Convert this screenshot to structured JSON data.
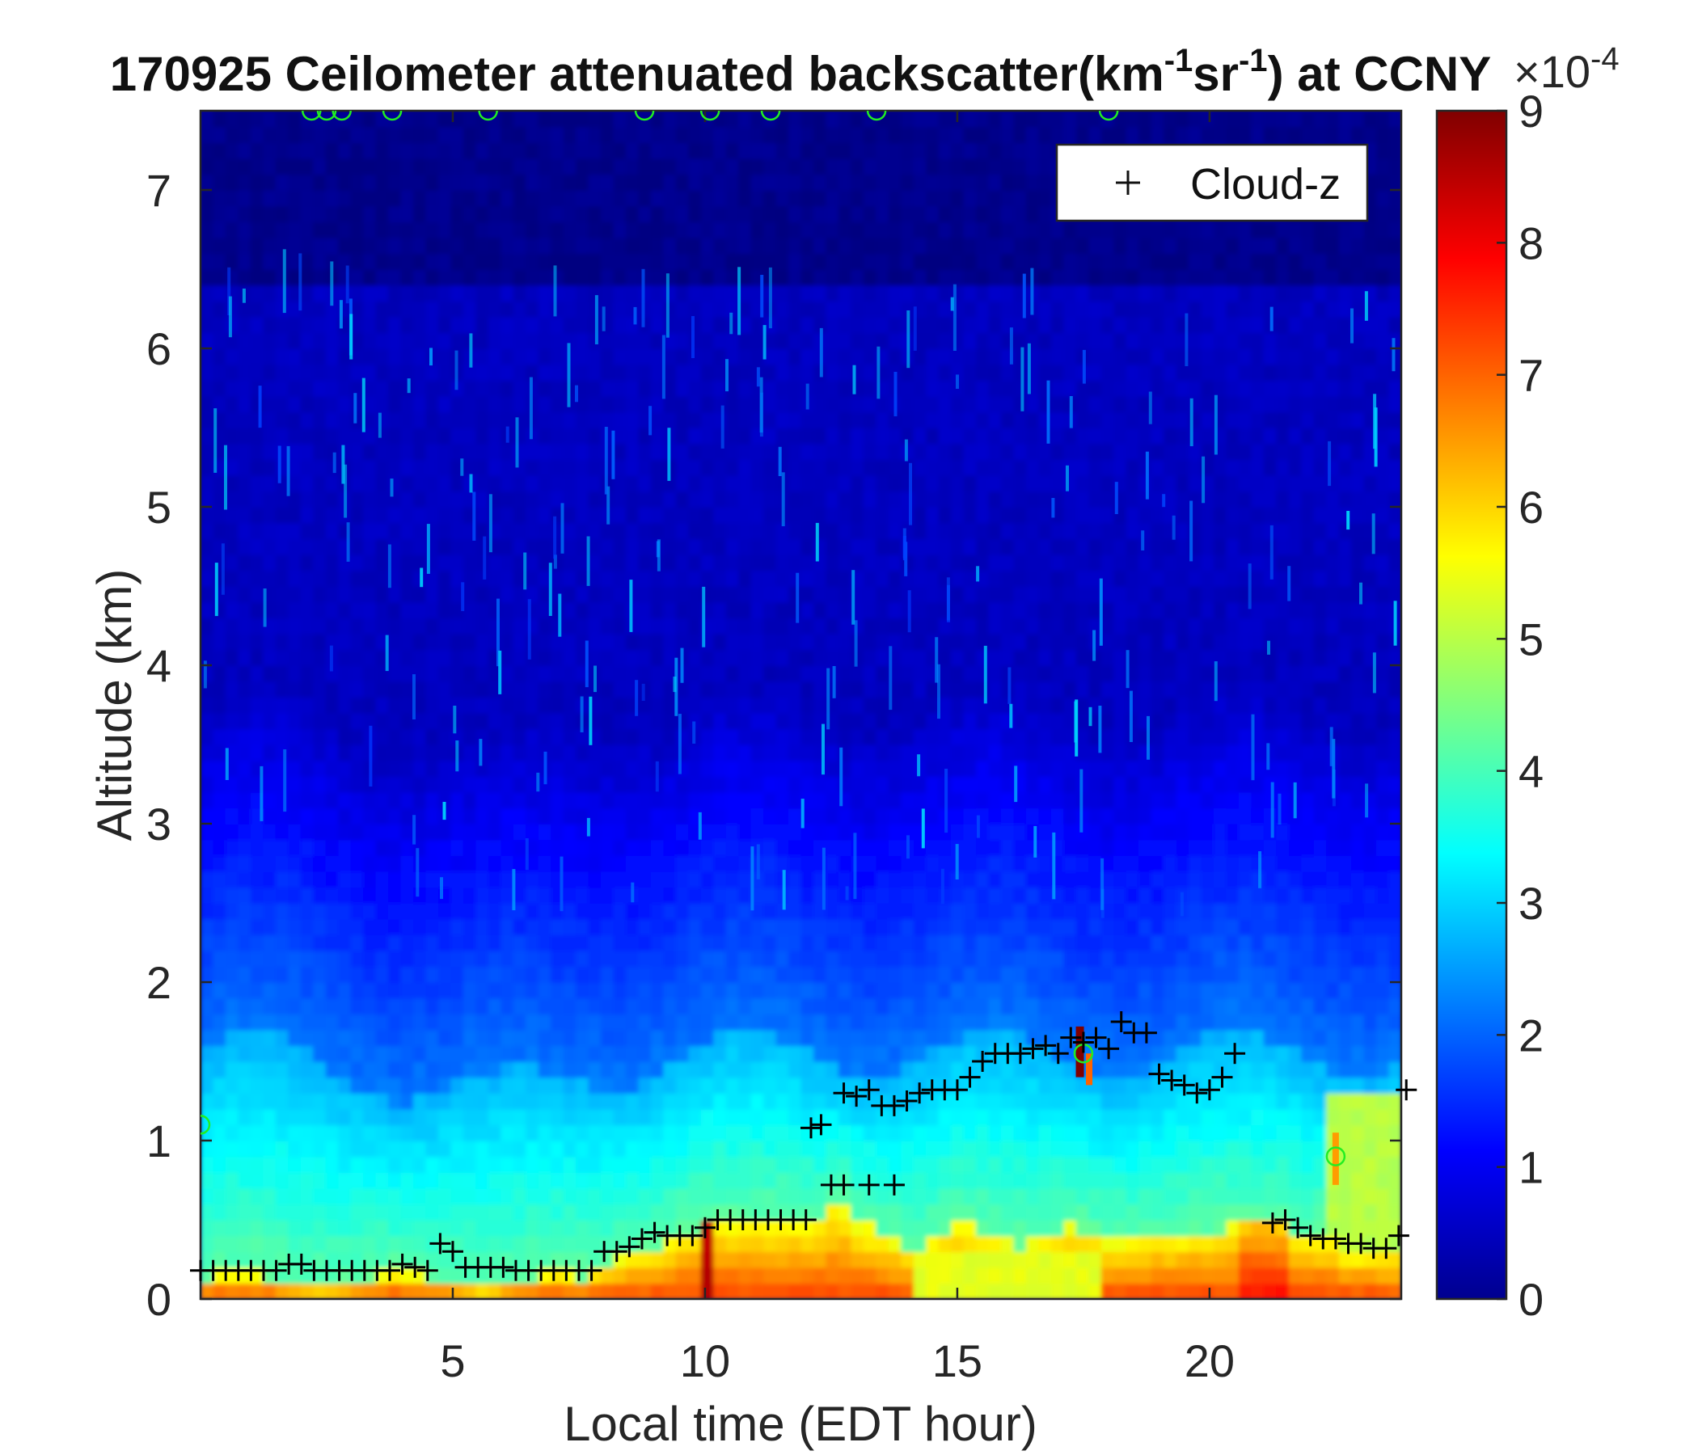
{
  "chart_data": {
    "type": "heatmap",
    "title": "170925 Ceilometer attenuated backscatter(km-1sr-1) at CCNY",
    "title_parts": {
      "pre": "170925 Ceilometer attenuated backscatter(km",
      "sup1": "-1",
      "mid": "sr",
      "sup2": "-1",
      "post": ") at CCNY"
    },
    "xlabel": "Local time (EDT hour)",
    "ylabel": "Altitude (km)",
    "xlim": [
      0,
      23.8
    ],
    "ylim": [
      0,
      7.5
    ],
    "x_ticks": [
      5,
      10,
      15,
      20
    ],
    "y_ticks": [
      0,
      1,
      2,
      3,
      4,
      5,
      6,
      7
    ],
    "colorbar": {
      "colormap": "jet",
      "range": [
        0,
        9
      ],
      "ticks": [
        0,
        1,
        2,
        3,
        4,
        5,
        6,
        7,
        8,
        9
      ],
      "multiplier": "×10",
      "multiplier_exponent": "-4"
    },
    "legend": {
      "position": "top-right",
      "entries": [
        {
          "marker": "+",
          "color": "#000000",
          "label": "Cloud-z"
        }
      ]
    },
    "series": [
      {
        "name": "Cloud-z",
        "marker": "+",
        "color": "#000000",
        "points": [
          [
            0.0,
            0.18
          ],
          [
            0.25,
            0.18
          ],
          [
            0.5,
            0.18
          ],
          [
            0.75,
            0.18
          ],
          [
            1.0,
            0.18
          ],
          [
            1.25,
            0.18
          ],
          [
            1.5,
            0.18
          ],
          [
            1.75,
            0.22
          ],
          [
            2.0,
            0.22
          ],
          [
            2.25,
            0.18
          ],
          [
            2.5,
            0.18
          ],
          [
            2.75,
            0.18
          ],
          [
            3.0,
            0.18
          ],
          [
            3.25,
            0.18
          ],
          [
            3.5,
            0.18
          ],
          [
            3.75,
            0.18
          ],
          [
            4.0,
            0.22
          ],
          [
            4.25,
            0.2
          ],
          [
            4.5,
            0.18
          ],
          [
            4.75,
            0.35
          ],
          [
            5.0,
            0.3
          ],
          [
            5.25,
            0.2
          ],
          [
            5.5,
            0.2
          ],
          [
            5.75,
            0.2
          ],
          [
            6.0,
            0.2
          ],
          [
            6.25,
            0.18
          ],
          [
            6.5,
            0.18
          ],
          [
            6.75,
            0.18
          ],
          [
            7.0,
            0.18
          ],
          [
            7.25,
            0.18
          ],
          [
            7.5,
            0.18
          ],
          [
            7.75,
            0.18
          ],
          [
            8.0,
            0.3
          ],
          [
            8.25,
            0.3
          ],
          [
            8.5,
            0.33
          ],
          [
            8.75,
            0.38
          ],
          [
            9.0,
            0.42
          ],
          [
            9.25,
            0.4
          ],
          [
            9.5,
            0.4
          ],
          [
            9.75,
            0.4
          ],
          [
            10.0,
            0.45
          ],
          [
            10.25,
            0.5
          ],
          [
            10.5,
            0.5
          ],
          [
            10.75,
            0.5
          ],
          [
            11.0,
            0.5
          ],
          [
            11.25,
            0.5
          ],
          [
            11.5,
            0.5
          ],
          [
            11.75,
            0.5
          ],
          [
            12.0,
            0.5
          ],
          [
            12.5,
            0.72
          ],
          [
            12.75,
            0.72
          ],
          [
            13.25,
            0.72
          ],
          [
            13.75,
            0.72
          ],
          [
            12.1,
            1.08
          ],
          [
            12.3,
            1.1
          ],
          [
            12.75,
            1.3
          ],
          [
            13.0,
            1.28
          ],
          [
            13.25,
            1.32
          ],
          [
            13.5,
            1.22
          ],
          [
            13.75,
            1.22
          ],
          [
            14.0,
            1.25
          ],
          [
            14.25,
            1.3
          ],
          [
            14.5,
            1.32
          ],
          [
            14.75,
            1.32
          ],
          [
            15.0,
            1.32
          ],
          [
            15.25,
            1.4
          ],
          [
            15.5,
            1.5
          ],
          [
            15.75,
            1.55
          ],
          [
            16.0,
            1.55
          ],
          [
            16.25,
            1.55
          ],
          [
            16.5,
            1.58
          ],
          [
            16.75,
            1.6
          ],
          [
            17.0,
            1.55
          ],
          [
            17.25,
            1.65
          ],
          [
            17.5,
            1.62
          ],
          [
            17.75,
            1.65
          ],
          [
            18.0,
            1.58
          ],
          [
            18.25,
            1.75
          ],
          [
            18.5,
            1.68
          ],
          [
            18.75,
            1.68
          ],
          [
            19.0,
            1.42
          ],
          [
            19.25,
            1.38
          ],
          [
            19.5,
            1.35
          ],
          [
            19.75,
            1.3
          ],
          [
            20.0,
            1.32
          ],
          [
            20.25,
            1.4
          ],
          [
            20.5,
            1.55
          ],
          [
            21.25,
            0.48
          ],
          [
            21.5,
            0.5
          ],
          [
            21.75,
            0.45
          ],
          [
            22.0,
            0.4
          ],
          [
            22.25,
            0.38
          ],
          [
            22.5,
            0.38
          ],
          [
            22.75,
            0.35
          ],
          [
            23.0,
            0.35
          ],
          [
            23.25,
            0.32
          ],
          [
            23.5,
            0.32
          ],
          [
            23.75,
            0.4
          ],
          [
            23.9,
            1.32
          ]
        ]
      },
      {
        "marker": "o",
        "color": "#22ee22",
        "points": [
          [
            0.0,
            1.1
          ],
          [
            17.5,
            1.55
          ],
          [
            22.5,
            0.9
          ],
          [
            2.2,
            7.5
          ],
          [
            2.5,
            7.5
          ],
          [
            2.8,
            7.5
          ],
          [
            3.8,
            7.5
          ],
          [
            5.7,
            7.5
          ],
          [
            8.8,
            7.5
          ],
          [
            10.1,
            7.5
          ],
          [
            11.3,
            7.5
          ],
          [
            13.4,
            7.5
          ],
          [
            18.0,
            7.5
          ]
        ]
      }
    ],
    "field_description": {
      "surface_layer": "red/orange high backscatter below ~0.5 km",
      "boundary_layer": "cyan/light blue up to ~1.5 km",
      "free_troposphere": "blue to dark blue decreasing with height, vertical streaks up to ~6.5 km"
    }
  }
}
